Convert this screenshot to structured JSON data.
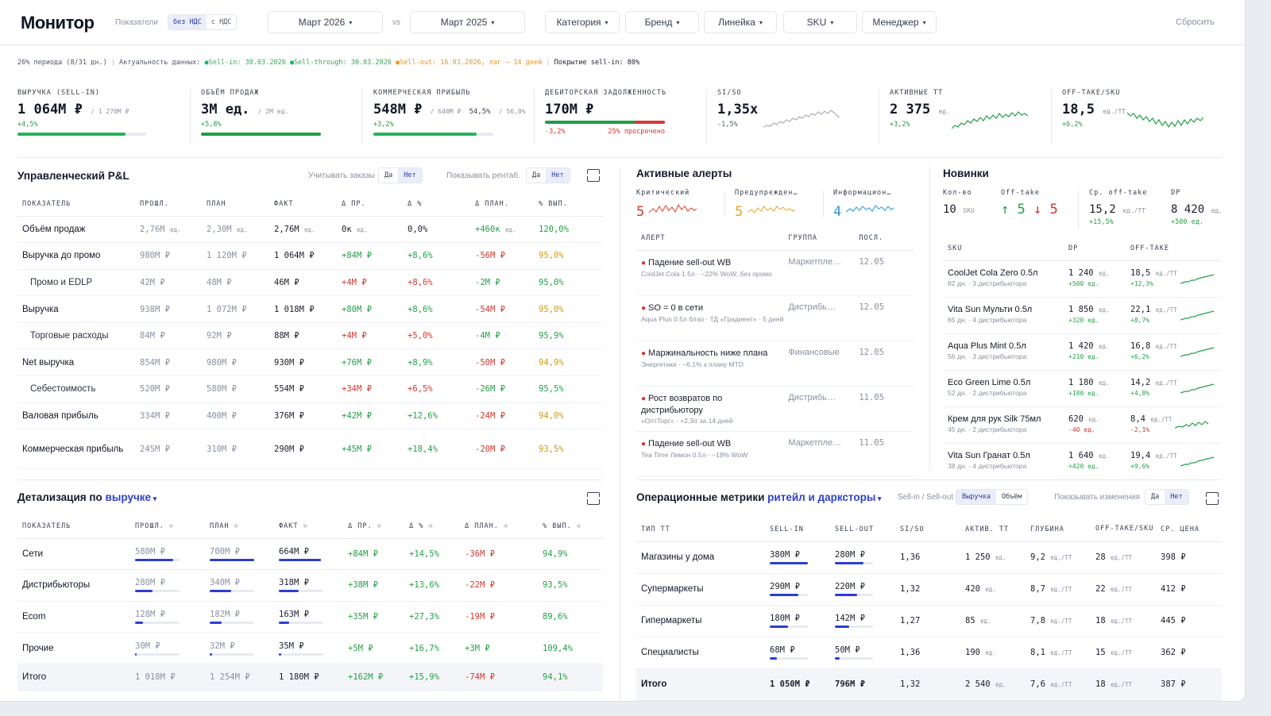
{
  "header": {
    "title": "Монитор",
    "toggle_label": "Показатели",
    "vat": [
      "без НДС",
      "с НДС"
    ],
    "period": "Март 2026",
    "vs": "vs",
    "compare": "Март 2025",
    "filters": [
      "Категория",
      "Бренд",
      "Линейка",
      "SKU",
      "Менеджер"
    ],
    "reset": "Сбросить"
  },
  "status": {
    "period": "26% периода (8/31 дн.)",
    "sep": "|",
    "actual": "Актуальность данных:",
    "sellin": "Sell-in: 30.03.2026",
    "sellthrough": "Sell-through: 30.03.2026",
    "sellout": "Sell-out: 16.03.2026, лаг — 14 дней",
    "coverage": "Покрытие sell-in: 80%"
  },
  "kpis": [
    {
      "label": "Выручка (Sell-in)",
      "value": "1 064М ₽",
      "sub": "/ 1 270М ₽",
      "change": "+4,5%",
      "progress": 0.84
    },
    {
      "label": "Объём продаж",
      "value": "3М ед.",
      "sub": "/ 2М ед.",
      "change": "+5,8%",
      "progress": 1.0
    },
    {
      "label": "Коммерческая прибыль",
      "value": "548М ₽",
      "sub": "/ 640М ₽",
      "extra": "54,5%",
      "extra2": "/ 56,0%",
      "change": "+3,2%",
      "progress": 0.86
    },
    {
      "label": "Дебиторская задолженность",
      "value": "170М ₽",
      "change": "-3,2%",
      "overdue": "25% просрочено",
      "overdue_share": 0.25
    },
    {
      "label": "SI/SO",
      "value": "1,35x",
      "change": "-1,5%"
    },
    {
      "label": "Активные ТТ",
      "value": "2 375",
      "unit": "ед.",
      "change": "+3,2%"
    },
    {
      "label": "Off-take/SKU",
      "value": "18,5",
      "unit": "ед./ТТ",
      "change": "+6,2%"
    }
  ],
  "pl": {
    "title": "Управленческий P&L",
    "ctl1": "Учитывать заказы",
    "ctl2": "Показывать рентаб.",
    "yes": "Да",
    "no": "Нет",
    "headers": [
      "Показатель",
      "Прошл.",
      "План",
      "Факт",
      "Δ пр.",
      "Δ %",
      "Δ план.",
      "% вып."
    ],
    "rows": [
      {
        "name": "Объём продаж",
        "sub": false,
        "prev": "2,76М",
        "prev_u": "ед.",
        "plan": "2,30М",
        "plan_u": "ед.",
        "fact": "2,76М",
        "fact_u": "ед.",
        "dpr": "0к",
        "dpr_u": "ед.",
        "dpct": "0,0%",
        "dplan": "+460к",
        "dplan_u": "ед.",
        "pct": "120,0%",
        "dpr_c": "",
        "dpct_c": "",
        "dplan_c": "pos",
        "pct_c": "pos"
      },
      {
        "name": "Выручка до промо",
        "sub": false,
        "prev": "980М ₽",
        "plan": "1 120М ₽",
        "fact": "1 064М ₽",
        "dpr": "+84М ₽",
        "dpct": "+8,6%",
        "dplan": "-56М ₽",
        "pct": "95,0%",
        "dpr_c": "pos",
        "dpct_c": "pos",
        "dplan_c": "neg",
        "pct_c": "warn"
      },
      {
        "name": "Промо и EDLP",
        "sub": true,
        "prev": "42М ₽",
        "plan": "48М ₽",
        "fact": "46М ₽",
        "dpr": "+4М ₽",
        "dpct": "+8,6%",
        "dplan": "-2М ₽",
        "pct": "95,0%",
        "dpr_c": "neg",
        "dpct_c": "neg",
        "dplan_c": "pos",
        "pct_c": "pos"
      },
      {
        "name": "Выручка",
        "sub": false,
        "prev": "938М ₽",
        "plan": "1 072М ₽",
        "fact": "1 018М ₽",
        "dpr": "+80М ₽",
        "dpct": "+8,6%",
        "dplan": "-54М ₽",
        "pct": "95,0%",
        "dpr_c": "pos",
        "dpct_c": "pos",
        "dplan_c": "neg",
        "pct_c": "warn"
      },
      {
        "name": "Торговые расходы",
        "sub": true,
        "prev": "84М ₽",
        "plan": "92М ₽",
        "fact": "88М ₽",
        "dpr": "+4М ₽",
        "dpct": "+5,0%",
        "dplan": "-4М ₽",
        "pct": "95,9%",
        "dpr_c": "neg",
        "dpct_c": "neg",
        "dplan_c": "pos",
        "pct_c": "pos"
      },
      {
        "name": "Net выручка",
        "sub": false,
        "prev": "854М ₽",
        "plan": "980М ₽",
        "fact": "930М ₽",
        "dpr": "+76М ₽",
        "dpct": "+8,9%",
        "dplan": "-50М ₽",
        "pct": "94,9%",
        "dpr_c": "pos",
        "dpct_c": "pos",
        "dplan_c": "neg",
        "pct_c": "warn"
      },
      {
        "name": "Себестоимость",
        "sub": true,
        "prev": "520М ₽",
        "plan": "580М ₽",
        "fact": "554М ₽",
        "dpr": "+34М ₽",
        "dpct": "+6,5%",
        "dplan": "-26М ₽",
        "pct": "95,5%",
        "dpr_c": "neg",
        "dpct_c": "neg",
        "dplan_c": "pos",
        "pct_c": "pos"
      },
      {
        "name": "Валовая прибыль",
        "sub": false,
        "prev": "334М ₽",
        "plan": "400М ₽",
        "fact": "376М ₽",
        "dpr": "+42М ₽",
        "dpct": "+12,6%",
        "dplan": "-24М ₽",
        "pct": "94,0%",
        "dpr_c": "pos",
        "dpct_c": "pos",
        "dplan_c": "neg",
        "pct_c": "warn"
      },
      {
        "name": "Коммерческая прибыль",
        "sub": false,
        "prev": "245М ₽",
        "plan": "310М ₽",
        "fact": "290М ₽",
        "dpr": "+45М ₽",
        "dpct": "+18,4%",
        "dplan": "-20М ₽",
        "pct": "93,5%",
        "dpr_c": "pos",
        "dpct_c": "pos",
        "dplan_c": "neg",
        "pct_c": "warn"
      }
    ]
  },
  "detail": {
    "title": "Детализация по",
    "link": "выручке",
    "headers": [
      "Показатель",
      "Прошл.",
      "План",
      "Факт",
      "Δ пр.",
      "Δ %",
      "Δ план.",
      "% вып."
    ],
    "rows": [
      {
        "name": "Сети",
        "prev": "580М ₽",
        "prev_s": 0.85,
        "plan": "700М ₽",
        "plan_s": 1.0,
        "fact": "664М ₽",
        "fact_s": 0.95,
        "dpr": "+84М ₽",
        "dpct": "+14,5%",
        "dplan": "-36М ₽",
        "pct": "94,9%",
        "pct_c": "pos"
      },
      {
        "name": "Дистрибьюторы",
        "prev": "280М ₽",
        "prev_s": 0.4,
        "plan": "340М ₽",
        "plan_s": 0.48,
        "fact": "318М ₽",
        "fact_s": 0.45,
        "dpr": "+38М ₽",
        "dpct": "+13,6%",
        "dplan": "-22М ₽",
        "pct": "93,5%",
        "pct_c": "pos"
      },
      {
        "name": "Ecom",
        "prev": "128М ₽",
        "prev_s": 0.18,
        "plan": "182М ₽",
        "plan_s": 0.26,
        "fact": "163М ₽",
        "fact_s": 0.23,
        "dpr": "+35М ₽",
        "dpct": "+27,3%",
        "dplan": "-19М ₽",
        "pct": "89,6%",
        "pct_c": "pos"
      },
      {
        "name": "Прочие",
        "prev": "30М ₽",
        "prev_s": 0.04,
        "plan": "32М ₽",
        "plan_s": 0.05,
        "fact": "35М ₽",
        "fact_s": 0.05,
        "dpr": "+5М ₽",
        "dpct": "+16,7%",
        "dplan": "+3М ₽",
        "pct": "109,4%",
        "pct_c": "pos"
      }
    ],
    "total": {
      "name": "Итого",
      "prev": "1 018М ₽",
      "plan": "1 254М ₽",
      "fact": "1 180М ₽",
      "dpr": "+162М ₽",
      "dpct": "+15,9%",
      "dplan": "-74М ₽",
      "pct": "94,1%"
    }
  },
  "alerts": {
    "title": "Активные алерты",
    "crit_label": "Критический",
    "crit": "5",
    "warn_label": "Предупрежден…",
    "warn": "5",
    "info_label": "Информацион…",
    "info": "4",
    "headers": [
      "Алерт",
      "Группа",
      "Посл."
    ],
    "rows": [
      {
        "title": "Падение sell-out WB",
        "sub": "CoolJet Cola 1.5л · −22% WoW, без промо",
        "group": "Маркетпле…",
        "date": "12.05"
      },
      {
        "title": "SO = 0 в сети",
        "sub": "Aqua Plus 0.5л б/газ · ТД «Градиент» · 5 дней",
        "group": "Дистрибь…",
        "date": "12.05"
      },
      {
        "title": "Маржинальность ниже плана",
        "sub": "Энергетики · −6,1% к плану MTD",
        "group": "Финансовые",
        "date": "12.05"
      },
      {
        "title": "Рост возвратов по дистрибьютору",
        "sub": "«ОптТорг» · +2,3σ за 14 дней",
        "group": "Дистрибь…",
        "date": "11.05"
      },
      {
        "title": "Падение sell-out WB",
        "sub": "Tea Time Лимон 0.5л · −18% WoW",
        "group": "Маркетпле…",
        "date": "11.05"
      }
    ]
  },
  "novelties": {
    "title": "Новинки",
    "count_label": "Кол-во",
    "count": "10",
    "count_u": "SKU",
    "offtake_label": "Off-take",
    "up": "5",
    "down": "5",
    "avg_label": "Ср. off-take",
    "avg": "15,2",
    "avg_u": "ед./ТТ",
    "avg_chg": "+15,5%",
    "dp_label": "DP",
    "dp": "8 420",
    "dp_u": "ед.",
    "dp_chg": "+500 ед.",
    "headers": [
      "SKU",
      "DP",
      "Off-take"
    ],
    "rows": [
      {
        "sku": "CoolJet Cola Zero 0.5л",
        "meta": "82 дн. · 3 дистрибьютора",
        "dp": "1 240",
        "dp_chg": "+500 ед.",
        "ot": "18,5",
        "ot_chg": "+12,3%",
        "neg": false
      },
      {
        "sku": "Vita Sun Мульти 0.5л",
        "meta": "65 дн. · 4 дистрибьютора",
        "dp": "1 850",
        "dp_chg": "+320 ед.",
        "ot": "22,1",
        "ot_chg": "+8,7%",
        "neg": false
      },
      {
        "sku": "Aqua Plus Mint 0.5л",
        "meta": "56 дн. · 3 дистрибьютора",
        "dp": "1 420",
        "dp_chg": "+210 ед.",
        "ot": "16,8",
        "ot_chg": "+6,2%",
        "neg": false
      },
      {
        "sku": "Eco Green Lime 0.5л",
        "meta": "52 дн. · 2 дистрибьютора",
        "dp": "1 180",
        "dp_chg": "+180 ед.",
        "ot": "14,2",
        "ot_chg": "+4,8%",
        "neg": false
      },
      {
        "sku": "Крем для рук Silk 75мл",
        "meta": "45 дн. · 2 дистрибьютора",
        "dp": "620",
        "dp_chg": "-40 ед.",
        "ot": "8,4",
        "ot_chg": "-2,1%",
        "neg": true
      },
      {
        "sku": "Vita Sun Гранат 0.5л",
        "meta": "38 дн. · 4 дистрибьютора",
        "dp": "1 640",
        "dp_chg": "+420 ед.",
        "ot": "19,4",
        "ot_chg": "+9,6%",
        "neg": false
      }
    ]
  },
  "ops": {
    "title": "Операционные метрики",
    "link": "ритейл и дарксторы",
    "ctl1": "Sell-in / Sell-out",
    "seg1": "Выручка",
    "seg2": "Объём",
    "ctl2": "Показывать изменения",
    "yes": "Да",
    "no": "Нет",
    "headers": [
      "Тип ТТ",
      "Sell-in",
      "Sell-out",
      "SI/SO",
      "Актив. ТТ",
      "Глубина",
      "Off-take/SKU",
      "Ср. цена"
    ],
    "rows": [
      {
        "name": "Магазины у дома",
        "si": "380М ₽",
        "si_s": 1.0,
        "so": "280М ₽",
        "so_s": 0.74,
        "siso": "1,36",
        "tt": "1 250",
        "depth": "9,2",
        "ot": "28",
        "price": "398 ₽"
      },
      {
        "name": "Супермаркеты",
        "si": "290М ₽",
        "si_s": 0.76,
        "so": "220М ₽",
        "so_s": 0.58,
        "siso": "1,32",
        "tt": "420",
        "depth": "8,7",
        "ot": "22",
        "price": "412 ₽"
      },
      {
        "name": "Гипермаркеты",
        "si": "180М ₽",
        "si_s": 0.47,
        "so": "142М ₽",
        "so_s": 0.37,
        "siso": "1,27",
        "tt": "85",
        "depth": "7,8",
        "ot": "18",
        "price": "445 ₽"
      },
      {
        "name": "Специалисты",
        "si": "68М ₽",
        "si_s": 0.18,
        "so": "50М ₽",
        "so_s": 0.13,
        "siso": "1,36",
        "tt": "190",
        "depth": "8,1",
        "ot": "15",
        "price": "362 ₽"
      }
    ],
    "total": {
      "name": "Итого",
      "si": "1 050М ₽",
      "so": "796М ₽",
      "siso": "1,32",
      "tt": "2 540",
      "depth": "7,6",
      "ot": "18",
      "price": "387 ₽"
    }
  },
  "units": {
    "ed": "ед.",
    "edtt": "ед./ТТ"
  },
  "colors": {
    "accent": "#2b3ed1",
    "positive": "#25a049",
    "negative": "#d0382f",
    "warning": "#d19a12"
  }
}
